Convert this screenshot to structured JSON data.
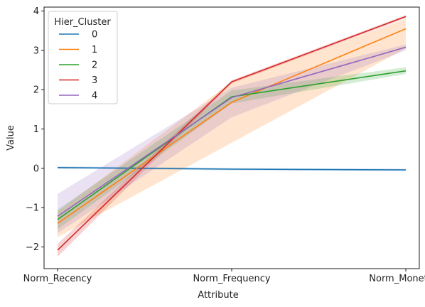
{
  "chart_data": {
    "type": "line",
    "title": "",
    "xlabel": "Attribute",
    "ylabel": "Value",
    "categories": [
      "Norm_Recency",
      "Norm_Frequency",
      "Norm_Monetary"
    ],
    "yticks": [
      -2,
      -1,
      0,
      1,
      2,
      3,
      4
    ],
    "ylim": [
      -2.55,
      4.1
    ],
    "grid": false,
    "legend": {
      "title": "Hier_Cluster",
      "placement": "top-left"
    },
    "series": [
      {
        "name": "0",
        "color": "#1f77b4",
        "values": [
          0.02,
          -0.02,
          -0.04
        ],
        "ci_low": [
          -0.01,
          -0.05,
          -0.07
        ],
        "ci_high": [
          0.05,
          0.01,
          -0.01
        ]
      },
      {
        "name": "1",
        "color": "#ff7f0e",
        "values": [
          -1.4,
          1.68,
          3.55
        ],
        "ci_low": [
          -1.75,
          0.65,
          3.05
        ],
        "ci_high": [
          -1.1,
          2.2,
          3.8
        ]
      },
      {
        "name": "2",
        "color": "#2ca02c",
        "values": [
          -1.3,
          1.82,
          2.48
        ],
        "ci_low": [
          -1.55,
          1.65,
          2.4
        ],
        "ci_high": [
          -1.05,
          1.98,
          2.57
        ]
      },
      {
        "name": "3",
        "color": "#d62728",
        "values": [
          -2.08,
          2.2,
          3.86
        ],
        "ci_low": [
          -2.25,
          2.16,
          3.82
        ],
        "ci_high": [
          -1.92,
          2.24,
          3.9
        ]
      },
      {
        "name": "4",
        "color": "#9467bd",
        "values": [
          -1.22,
          1.8,
          3.08
        ],
        "ci_low": [
          -1.65,
          1.3,
          3.0
        ],
        "ci_high": [
          -0.65,
          2.05,
          3.15
        ]
      }
    ]
  }
}
